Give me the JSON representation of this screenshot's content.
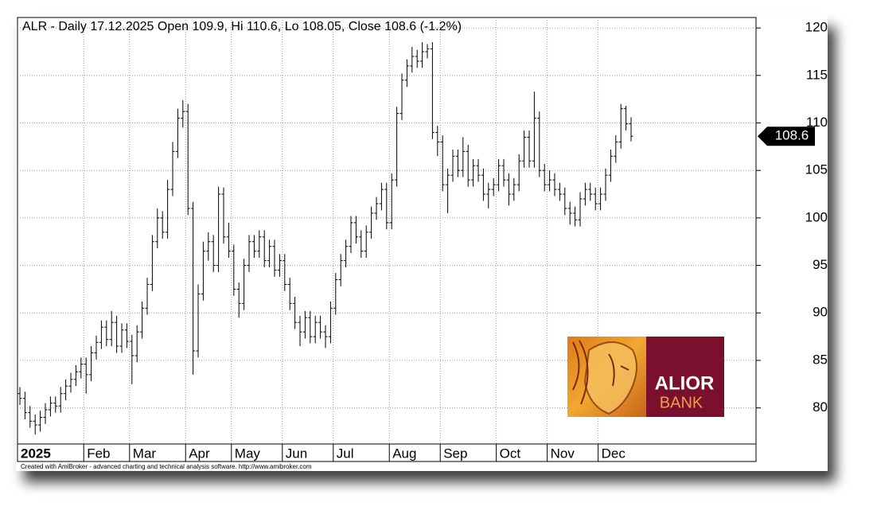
{
  "chart_data": {
    "type": "ohlc",
    "title": "ALR - Daily 17.12.2025 Open 109.9, Hi 110.6, Lo 108.05, Close 108.6 (-1.2%)",
    "footer": "Created with AmiBroker - advanced charting and technical analysis software. http://www.amibroker.com",
    "logo": {
      "line1": "ALIOR",
      "line2": "BANK"
    },
    "last_price": 108.6,
    "color": "#000000",
    "grid": true,
    "ylim": [
      76.2,
      121.1
    ],
    "yticks": [
      80,
      85,
      90,
      95,
      100,
      105,
      110,
      115,
      120
    ],
    "categories": [
      "2025",
      null,
      null,
      null,
      null,
      null,
      null,
      null,
      null,
      null,
      null,
      null,
      null,
      "Feb",
      null,
      null,
      null,
      null,
      null,
      null,
      null,
      null,
      "Mar",
      null,
      null,
      null,
      null,
      null,
      null,
      null,
      null,
      null,
      null,
      "Apr",
      null,
      null,
      null,
      null,
      null,
      null,
      null,
      null,
      "May",
      null,
      null,
      null,
      null,
      null,
      null,
      null,
      null,
      null,
      "Jun",
      null,
      null,
      null,
      null,
      null,
      null,
      null,
      null,
      null,
      "Jul",
      null,
      null,
      null,
      null,
      null,
      null,
      null,
      null,
      null,
      null,
      "Aug",
      null,
      null,
      null,
      null,
      null,
      null,
      null,
      null,
      null,
      "Sep",
      null,
      null,
      null,
      null,
      null,
      null,
      null,
      null,
      null,
      null,
      "Oct",
      null,
      null,
      null,
      null,
      null,
      null,
      null,
      null,
      null,
      "Nov",
      null,
      null,
      null,
      null,
      null,
      null,
      null,
      null,
      null,
      "Dec",
      null,
      null,
      null,
      null,
      null,
      null
    ],
    "open": [
      81.5,
      81.0,
      79.5,
      78.6,
      78.2,
      79.0,
      79.8,
      80.5,
      80.2,
      81.5,
      82.3,
      83.0,
      83.8,
      84.6,
      83.5,
      85.8,
      86.9,
      88.5,
      87.2,
      89.0,
      86.5,
      88.2,
      87.0,
      85.5,
      88.0,
      90.5,
      93.0,
      97.5,
      100.0,
      98.5,
      103.0,
      107.0,
      110.5,
      111.2,
      101.0,
      86.0,
      92.0,
      96.5,
      97.5,
      95.0,
      102.5,
      98.0,
      96.5,
      92.5,
      91.0,
      95.0,
      97.5,
      96.5,
      98.0,
      95.5,
      97.0,
      94.5,
      95.5,
      93.0,
      91.0,
      89.0,
      88.0,
      89.5,
      87.5,
      89.0,
      88.0,
      87.5,
      90.5,
      93.5,
      95.5,
      97.0,
      99.5,
      98.0,
      96.5,
      98.5,
      100.5,
      101.5,
      103.0,
      99.5,
      104.0,
      111.0,
      114.5,
      116.0,
      117.0,
      116.5,
      117.5,
      117.8,
      109.0,
      108.0,
      103.5,
      104.5,
      106.5,
      105.0,
      107.0,
      104.0,
      105.5,
      104.5,
      102.5,
      103.0,
      103.5,
      105.5,
      104.0,
      102.5,
      103.5,
      106.0,
      108.5,
      106.0,
      110.5,
      105.0,
      103.5,
      104.0,
      103.0,
      102.5,
      101.0,
      100.5,
      99.8,
      102.0,
      103.0,
      102.5,
      101.5,
      102.5,
      104.5,
      106.5,
      108.0,
      111.5,
      109.9
    ],
    "high": [
      82.2,
      81.7,
      80.2,
      79.3,
      79.7,
      80.5,
      81.2,
      81.2,
      82.2,
      83.0,
      83.7,
      84.5,
      85.3,
      85.3,
      86.5,
      87.6,
      89.2,
      89.2,
      90.2,
      89.7,
      88.9,
      88.9,
      87.7,
      88.7,
      91.2,
      93.7,
      98.2,
      101.0,
      100.7,
      104.0,
      108.0,
      111.5,
      112.4,
      112.0,
      101.7,
      93.0,
      97.5,
      98.5,
      98.2,
      103.3,
      103.2,
      99.5,
      97.2,
      93.2,
      95.7,
      98.2,
      98.2,
      98.7,
      98.7,
      97.7,
      97.7,
      96.2,
      96.2,
      93.7,
      91.7,
      89.7,
      90.2,
      90.2,
      89.7,
      89.7,
      88.7,
      91.2,
      94.2,
      96.2,
      97.7,
      100.2,
      100.2,
      98.7,
      99.2,
      101.2,
      102.2,
      103.7,
      103.7,
      104.7,
      111.7,
      115.2,
      116.7,
      118.0,
      117.7,
      118.5,
      118.3,
      118.5,
      109.7,
      108.7,
      105.2,
      107.2,
      107.2,
      108.5,
      107.7,
      106.2,
      106.2,
      105.2,
      103.7,
      104.2,
      106.2,
      106.2,
      104.7,
      104.2,
      106.7,
      109.2,
      109.2,
      113.3,
      111.2,
      105.7,
      105.0,
      104.7,
      103.7,
      103.2,
      101.7,
      101.2,
      102.7,
      103.7,
      103.7,
      103.2,
      103.2,
      105.2,
      107.2,
      108.7,
      112.0,
      111.8,
      110.6
    ],
    "low": [
      80.3,
      78.8,
      77.9,
      77.2,
      77.5,
      78.3,
      79.1,
      79.5,
      79.5,
      80.8,
      81.6,
      82.3,
      83.1,
      81.5,
      82.8,
      85.1,
      86.2,
      86.5,
      86.5,
      85.8,
      85.8,
      86.3,
      82.5,
      84.8,
      87.3,
      89.8,
      92.3,
      96.8,
      97.8,
      97.8,
      102.3,
      106.3,
      109.5,
      100.3,
      83.5,
      85.3,
      91.3,
      95.5,
      94.3,
      94.3,
      97.3,
      95.8,
      91.8,
      89.5,
      90.3,
      94.3,
      95.8,
      95.8,
      94.8,
      94.8,
      93.8,
      93.8,
      92.3,
      90.3,
      88.3,
      86.5,
      87.3,
      86.8,
      86.8,
      87.3,
      86.3,
      86.8,
      89.8,
      92.8,
      94.8,
      96.3,
      97.3,
      95.8,
      95.8,
      97.8,
      99.8,
      100.8,
      98.8,
      98.8,
      103.3,
      110.3,
      113.8,
      115.3,
      115.8,
      115.8,
      116.8,
      108.3,
      106.5,
      102.8,
      100.5,
      103.8,
      104.3,
      104.3,
      103.3,
      103.3,
      103.8,
      101.8,
      101.0,
      102.3,
      102.8,
      103.3,
      101.3,
      101.8,
      102.8,
      105.3,
      105.3,
      105.3,
      104.3,
      102.8,
      102.8,
      102.3,
      101.8,
      100.3,
      99.3,
      99.1,
      99.1,
      101.3,
      101.8,
      100.8,
      100.8,
      101.8,
      103.8,
      105.8,
      107.3,
      109.2,
      108.05
    ],
    "close": [
      81.0,
      79.5,
      78.6,
      78.2,
      79.0,
      79.8,
      80.5,
      80.2,
      81.5,
      82.3,
      83.0,
      83.8,
      84.6,
      83.5,
      85.8,
      86.9,
      88.5,
      87.2,
      89.0,
      86.5,
      88.2,
      87.0,
      85.5,
      88.0,
      90.5,
      93.0,
      97.5,
      100.0,
      98.5,
      103.0,
      107.0,
      110.5,
      111.2,
      101.0,
      86.0,
      92.0,
      96.5,
      97.5,
      95.0,
      102.5,
      98.0,
      96.5,
      92.5,
      91.0,
      95.0,
      97.5,
      96.5,
      98.0,
      95.5,
      97.0,
      94.5,
      95.5,
      93.0,
      91.0,
      89.0,
      88.0,
      89.5,
      87.5,
      89.0,
      88.0,
      87.5,
      90.5,
      93.5,
      95.5,
      97.0,
      99.5,
      98.0,
      96.5,
      98.5,
      100.5,
      101.5,
      103.0,
      99.5,
      104.0,
      111.0,
      114.5,
      116.0,
      117.0,
      116.5,
      117.5,
      117.8,
      109.0,
      108.0,
      103.5,
      104.5,
      106.5,
      105.0,
      107.0,
      104.0,
      105.5,
      104.5,
      102.5,
      103.0,
      103.5,
      105.5,
      104.0,
      102.5,
      103.5,
      106.0,
      108.5,
      106.0,
      110.5,
      105.0,
      103.5,
      104.0,
      103.0,
      102.5,
      101.0,
      100.5,
      99.8,
      102.0,
      103.0,
      102.5,
      101.5,
      102.5,
      104.5,
      106.5,
      108.0,
      111.5,
      109.9,
      108.6
    ]
  }
}
